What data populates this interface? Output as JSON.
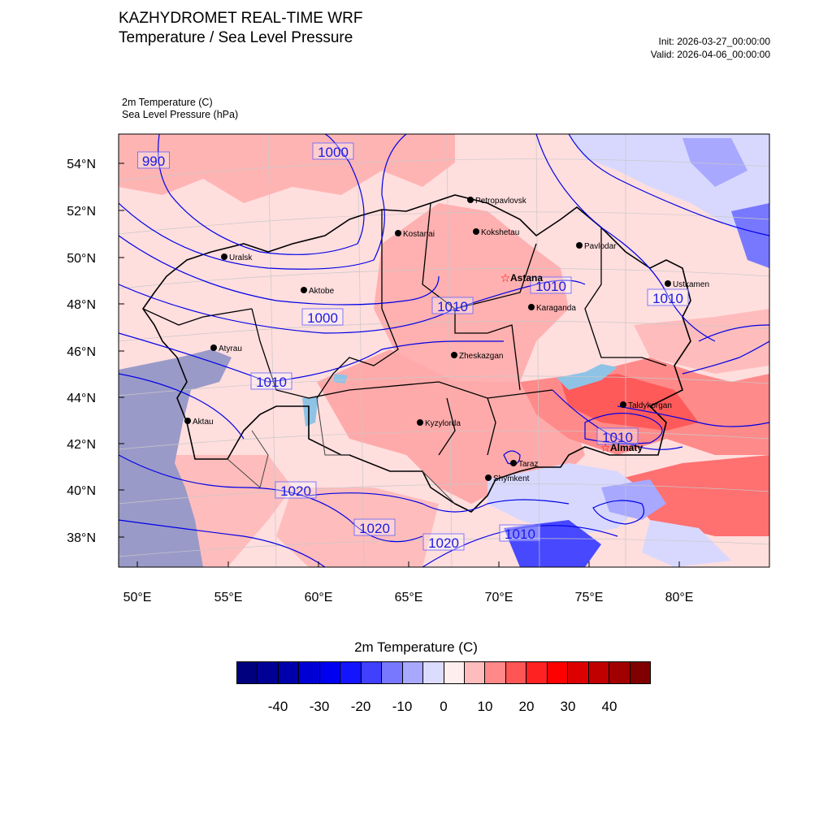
{
  "header": {
    "title": "KAZHYDROMET REAL-TIME WRF",
    "subtitle": "Temperature / Sea Level Pressure",
    "init": "Init: 2026-03-27_00:00:00",
    "valid": "Valid: 2026-04-06_00:00:00"
  },
  "fields": {
    "temperature_label": "2m Temperature   (C)",
    "pressure_label": "Sea Level Pressure   (hPa)"
  },
  "axes": {
    "latitude_ticks": [
      "54°N",
      "52°N",
      "50°N",
      "48°N",
      "46°N",
      "44°N",
      "42°N",
      "40°N",
      "38°N"
    ],
    "longitude_ticks": [
      "50°E",
      "55°E",
      "60°E",
      "65°E",
      "70°E",
      "75°E",
      "80°E"
    ]
  },
  "cities": [
    {
      "name": "Petropavlovsk",
      "lon": 68.8,
      "lat": 54.9,
      "capital": false
    },
    {
      "name": "Kostanai",
      "lon": 63.6,
      "lat": 53.2,
      "capital": false
    },
    {
      "name": "Kokshetau",
      "lon": 69.4,
      "lat": 53.3,
      "capital": false
    },
    {
      "name": "Pavlodar",
      "lon": 76.9,
      "lat": 52.3,
      "capital": false
    },
    {
      "name": "Uralsk",
      "lon": 51.4,
      "lat": 51.2,
      "capital": false
    },
    {
      "name": "Astana",
      "lon": 71.4,
      "lat": 51.1,
      "capital": true
    },
    {
      "name": "Ustkamen",
      "lon": 82.6,
      "lat": 50.0,
      "capital": false
    },
    {
      "name": "Aktobe",
      "lon": 57.2,
      "lat": 50.3,
      "capital": false
    },
    {
      "name": "Karaganda",
      "lon": 73.1,
      "lat": 49.8,
      "capital": false
    },
    {
      "name": "Atyrau",
      "lon": 51.9,
      "lat": 47.1,
      "capital": false
    },
    {
      "name": "Zheskazgan",
      "lon": 67.7,
      "lat": 47.8,
      "capital": false
    },
    {
      "name": "Taldykorgan",
      "lon": 78.4,
      "lat": 45.0,
      "capital": false
    },
    {
      "name": "Aktau",
      "lon": 51.2,
      "lat": 43.6,
      "capital": false
    },
    {
      "name": "Kyzylorda",
      "lon": 65.5,
      "lat": 44.8,
      "capital": false
    },
    {
      "name": "Almaty",
      "lon": 76.9,
      "lat": 43.2,
      "capital": true
    },
    {
      "name": "Taraz",
      "lon": 71.4,
      "lat": 42.9,
      "capital": false
    },
    {
      "name": "Shymkent",
      "lon": 69.6,
      "lat": 42.3,
      "capital": false
    }
  ],
  "isobar_labels": [
    "990",
    "1000",
    "1000",
    "1010",
    "1010",
    "1010",
    "1010",
    "1010",
    "1020",
    "1020",
    "1020",
    "1010"
  ],
  "colorbar": {
    "title": "2m Temperature  (C)",
    "labels": [
      "-40",
      "-30",
      "-20",
      "-10",
      "0",
      "10",
      "20",
      "30",
      "40"
    ],
    "colors": [
      "#00007f",
      "#000095",
      "#0000ab",
      "#0000d5",
      "#0000f0",
      "#1414ff",
      "#4040ff",
      "#7878ff",
      "#a8a8ff",
      "#dcdcff",
      "#ffeeee",
      "#ffbcbc",
      "#ff8888",
      "#ff5555",
      "#ff2222",
      "#ff0000",
      "#dc0000",
      "#c00000",
      "#a00000",
      "#800000"
    ]
  }
}
